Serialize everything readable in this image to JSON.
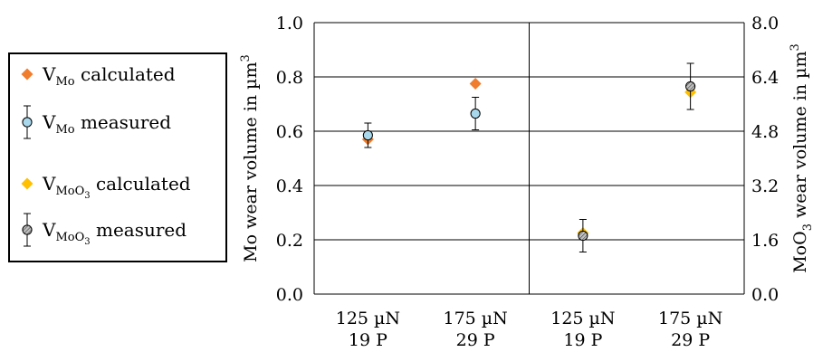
{
  "chart_data": {
    "type": "scatter",
    "categories": [
      [
        "125 µN",
        "19 P"
      ],
      [
        "175 µN",
        "29 P"
      ],
      [
        "125 µN",
        "19 P"
      ],
      [
        "175 µN",
        "29 P"
      ]
    ],
    "ylabel": "Mo wear volume in µm",
    "ylabel_sup": "3",
    "y2label_prefix": "MoO",
    "y2label_sub": "3",
    "y2label_main": " wear volume in µm",
    "y2label_sup": "3",
    "ylim": [
      0,
      1.0
    ],
    "y2lim": [
      0,
      8.0
    ],
    "yticks": [
      "0.0",
      "0.2",
      "0.4",
      "0.6",
      "0.8",
      "1.0"
    ],
    "y2ticks": [
      "0.0",
      "1.6",
      "3.2",
      "4.8",
      "6.4",
      "8.0"
    ],
    "grid": true,
    "legend_position": "left",
    "colors": {
      "mo_calc": "#f07d2e",
      "mo_meas": "#a9d8ec",
      "moo3_calc": "#ffc000",
      "moo3_meas": "#8c8c8c"
    },
    "series": [
      {
        "key": "mo_calc",
        "axis": "left",
        "marker": "diamond",
        "legend_base": "V",
        "legend_sub": "Mo",
        "legend_sub2": "",
        "legend_rest": " calculated",
        "points": [
          {
            "x": 0,
            "y": 0.57
          },
          {
            "x": 1,
            "y": 0.775
          }
        ]
      },
      {
        "key": "mo_meas",
        "axis": "left",
        "marker": "circle",
        "legend_base": "V",
        "legend_sub": "Mo",
        "legend_sub2": "",
        "legend_rest": " measured",
        "points": [
          {
            "x": 0,
            "y": 0.585,
            "err": 0.045
          },
          {
            "x": 1,
            "y": 0.665,
            "err": 0.06
          }
        ]
      },
      {
        "key": "moo3_calc",
        "axis": "right",
        "marker": "diamond",
        "legend_base": "V",
        "legend_sub": "MoO",
        "legend_sub2": "3",
        "legend_rest": " calculated",
        "points": [
          {
            "x": 2,
            "y": 1.8
          },
          {
            "x": 3,
            "y": 5.95
          }
        ]
      },
      {
        "key": "moo3_meas",
        "axis": "right",
        "marker": "circle-hatched",
        "legend_base": "V",
        "legend_sub": "MoO",
        "legend_sub2": "3",
        "legend_rest": " measured",
        "points": [
          {
            "x": 2,
            "y": 1.72,
            "err": 0.48
          },
          {
            "x": 3,
            "y": 6.12,
            "err": 0.68
          }
        ]
      }
    ]
  }
}
